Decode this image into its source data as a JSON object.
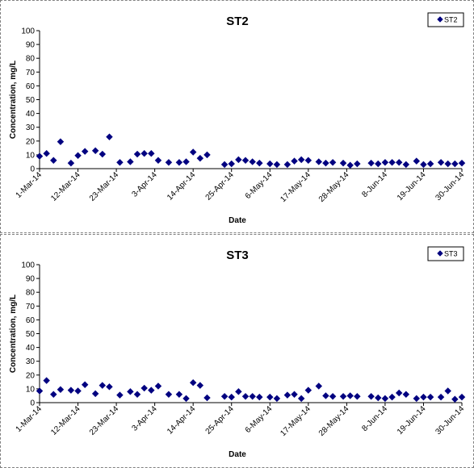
{
  "chart_data": [
    {
      "type": "scatter",
      "title": "ST2",
      "xlabel": "Date",
      "ylabel": "Concentration, mg/L",
      "ylim": [
        0,
        100
      ],
      "ytick_step": 10,
      "xlim": [
        "2014-03-01",
        "2014-06-30"
      ],
      "x_tick_labels": [
        "1-Mar-14",
        "12-Mar-14",
        "23-Mar-14",
        "3-Apr-14",
        "14-Apr-14",
        "25-Apr-14",
        "6-May-14",
        "17-May-14",
        "28-May-14",
        "8-Jun-14",
        "19-Jun-14",
        "30-Jun-14"
      ],
      "x_tick_dates": [
        "2014-03-01",
        "2014-03-12",
        "2014-03-23",
        "2014-04-03",
        "2014-04-14",
        "2014-04-25",
        "2014-05-06",
        "2014-05-17",
        "2014-05-28",
        "2014-06-08",
        "2014-06-19",
        "2014-06-30"
      ],
      "legend_position": "top-right",
      "grid": false,
      "marker": "diamond",
      "color": "#000080",
      "series": [
        {
          "name": "ST2",
          "points": [
            {
              "x": "2014-03-01",
              "y": 9
            },
            {
              "x": "2014-03-03",
              "y": 11
            },
            {
              "x": "2014-03-05",
              "y": 6
            },
            {
              "x": "2014-03-07",
              "y": 19.5
            },
            {
              "x": "2014-03-10",
              "y": 4
            },
            {
              "x": "2014-03-12",
              "y": 9.5
            },
            {
              "x": "2014-03-14",
              "y": 12.5
            },
            {
              "x": "2014-03-17",
              "y": 13
            },
            {
              "x": "2014-03-19",
              "y": 10.5
            },
            {
              "x": "2014-03-21",
              "y": 23
            },
            {
              "x": "2014-03-24",
              "y": 4.5
            },
            {
              "x": "2014-03-27",
              "y": 5
            },
            {
              "x": "2014-03-29",
              "y": 10.5
            },
            {
              "x": "2014-03-31",
              "y": 11
            },
            {
              "x": "2014-04-02",
              "y": 11
            },
            {
              "x": "2014-04-04",
              "y": 6
            },
            {
              "x": "2014-04-07",
              "y": 4.5
            },
            {
              "x": "2014-04-10",
              "y": 4.5
            },
            {
              "x": "2014-04-12",
              "y": 5
            },
            {
              "x": "2014-04-14",
              "y": 12
            },
            {
              "x": "2014-04-16",
              "y": 7.5
            },
            {
              "x": "2014-04-18",
              "y": 10
            },
            {
              "x": "2014-04-23",
              "y": 3
            },
            {
              "x": "2014-04-25",
              "y": 3.5
            },
            {
              "x": "2014-04-27",
              "y": 6.5
            },
            {
              "x": "2014-04-29",
              "y": 6
            },
            {
              "x": "2014-05-01",
              "y": 5
            },
            {
              "x": "2014-05-03",
              "y": 4
            },
            {
              "x": "2014-05-06",
              "y": 3.5
            },
            {
              "x": "2014-05-08",
              "y": 3
            },
            {
              "x": "2014-05-11",
              "y": 3
            },
            {
              "x": "2014-05-13",
              "y": 5.5
            },
            {
              "x": "2014-05-15",
              "y": 6.5
            },
            {
              "x": "2014-05-17",
              "y": 6
            },
            {
              "x": "2014-05-20",
              "y": 5
            },
            {
              "x": "2014-05-22",
              "y": 4
            },
            {
              "x": "2014-05-24",
              "y": 4.5
            },
            {
              "x": "2014-05-27",
              "y": 4
            },
            {
              "x": "2014-05-29",
              "y": 2.5
            },
            {
              "x": "2014-05-31",
              "y": 3.5
            },
            {
              "x": "2014-06-04",
              "y": 4
            },
            {
              "x": "2014-06-06",
              "y": 3.5
            },
            {
              "x": "2014-06-08",
              "y": 4.5
            },
            {
              "x": "2014-06-10",
              "y": 4.5
            },
            {
              "x": "2014-06-12",
              "y": 4.5
            },
            {
              "x": "2014-06-14",
              "y": 3
            },
            {
              "x": "2014-06-17",
              "y": 5.5
            },
            {
              "x": "2014-06-19",
              "y": 3
            },
            {
              "x": "2014-06-21",
              "y": 3.5
            },
            {
              "x": "2014-06-24",
              "y": 4.5
            },
            {
              "x": "2014-06-26",
              "y": 3.5
            },
            {
              "x": "2014-06-28",
              "y": 3.5
            },
            {
              "x": "2014-06-30",
              "y": 4
            }
          ]
        }
      ]
    },
    {
      "type": "scatter",
      "title": "ST3",
      "xlabel": "Date",
      "ylabel": "Concentration, mg/L",
      "ylim": [
        0,
        100
      ],
      "ytick_step": 10,
      "xlim": [
        "2014-03-01",
        "2014-06-30"
      ],
      "x_tick_labels": [
        "1-Mar-14",
        "12-Mar-14",
        "23-Mar-14",
        "3-Apr-14",
        "14-Apr-14",
        "25-Apr-14",
        "6-May-14",
        "17-May-14",
        "28-May-14",
        "8-Jun-14",
        "19-Jun-14",
        "30-Jun-14"
      ],
      "x_tick_dates": [
        "2014-03-01",
        "2014-03-12",
        "2014-03-23",
        "2014-04-03",
        "2014-04-14",
        "2014-04-25",
        "2014-05-06",
        "2014-05-17",
        "2014-05-28",
        "2014-06-08",
        "2014-06-19",
        "2014-06-30"
      ],
      "legend_position": "top-right",
      "grid": false,
      "marker": "diamond",
      "color": "#000080",
      "series": [
        {
          "name": "ST3",
          "points": [
            {
              "x": "2014-03-01",
              "y": 8.5
            },
            {
              "x": "2014-03-03",
              "y": 16
            },
            {
              "x": "2014-03-05",
              "y": 6
            },
            {
              "x": "2014-03-07",
              "y": 9.5
            },
            {
              "x": "2014-03-10",
              "y": 9
            },
            {
              "x": "2014-03-12",
              "y": 8.5
            },
            {
              "x": "2014-03-14",
              "y": 13
            },
            {
              "x": "2014-03-17",
              "y": 6.5
            },
            {
              "x": "2014-03-19",
              "y": 12.5
            },
            {
              "x": "2014-03-21",
              "y": 11.5
            },
            {
              "x": "2014-03-24",
              "y": 5.5
            },
            {
              "x": "2014-03-27",
              "y": 8
            },
            {
              "x": "2014-03-29",
              "y": 6
            },
            {
              "x": "2014-03-31",
              "y": 10.5
            },
            {
              "x": "2014-04-02",
              "y": 9
            },
            {
              "x": "2014-04-04",
              "y": 12
            },
            {
              "x": "2014-04-07",
              "y": 6
            },
            {
              "x": "2014-04-10",
              "y": 6
            },
            {
              "x": "2014-04-12",
              "y": 3
            },
            {
              "x": "2014-04-14",
              "y": 14.5
            },
            {
              "x": "2014-04-16",
              "y": 12.5
            },
            {
              "x": "2014-04-18",
              "y": 3.5
            },
            {
              "x": "2014-04-23",
              "y": 4.5
            },
            {
              "x": "2014-04-25",
              "y": 4
            },
            {
              "x": "2014-04-27",
              "y": 8
            },
            {
              "x": "2014-04-29",
              "y": 4.5
            },
            {
              "x": "2014-05-01",
              "y": 4.5
            },
            {
              "x": "2014-05-03",
              "y": 4
            },
            {
              "x": "2014-05-06",
              "y": 4
            },
            {
              "x": "2014-05-08",
              "y": 3
            },
            {
              "x": "2014-05-11",
              "y": 5.5
            },
            {
              "x": "2014-05-13",
              "y": 6
            },
            {
              "x": "2014-05-15",
              "y": 3
            },
            {
              "x": "2014-05-17",
              "y": 9
            },
            {
              "x": "2014-05-20",
              "y": 12
            },
            {
              "x": "2014-05-22",
              "y": 5
            },
            {
              "x": "2014-05-24",
              "y": 4.5
            },
            {
              "x": "2014-05-27",
              "y": 4.5
            },
            {
              "x": "2014-05-29",
              "y": 5
            },
            {
              "x": "2014-05-31",
              "y": 4.5
            },
            {
              "x": "2014-06-04",
              "y": 4.5
            },
            {
              "x": "2014-06-06",
              "y": 3.5
            },
            {
              "x": "2014-06-08",
              "y": 3
            },
            {
              "x": "2014-06-10",
              "y": 4
            },
            {
              "x": "2014-06-12",
              "y": 7
            },
            {
              "x": "2014-06-14",
              "y": 6
            },
            {
              "x": "2014-06-17",
              "y": 3
            },
            {
              "x": "2014-06-19",
              "y": 4
            },
            {
              "x": "2014-06-21",
              "y": 4
            },
            {
              "x": "2014-06-24",
              "y": 4
            },
            {
              "x": "2014-06-26",
              "y": 8.5
            },
            {
              "x": "2014-06-28",
              "y": 2.5
            },
            {
              "x": "2014-06-30",
              "y": 4
            }
          ]
        }
      ]
    }
  ]
}
